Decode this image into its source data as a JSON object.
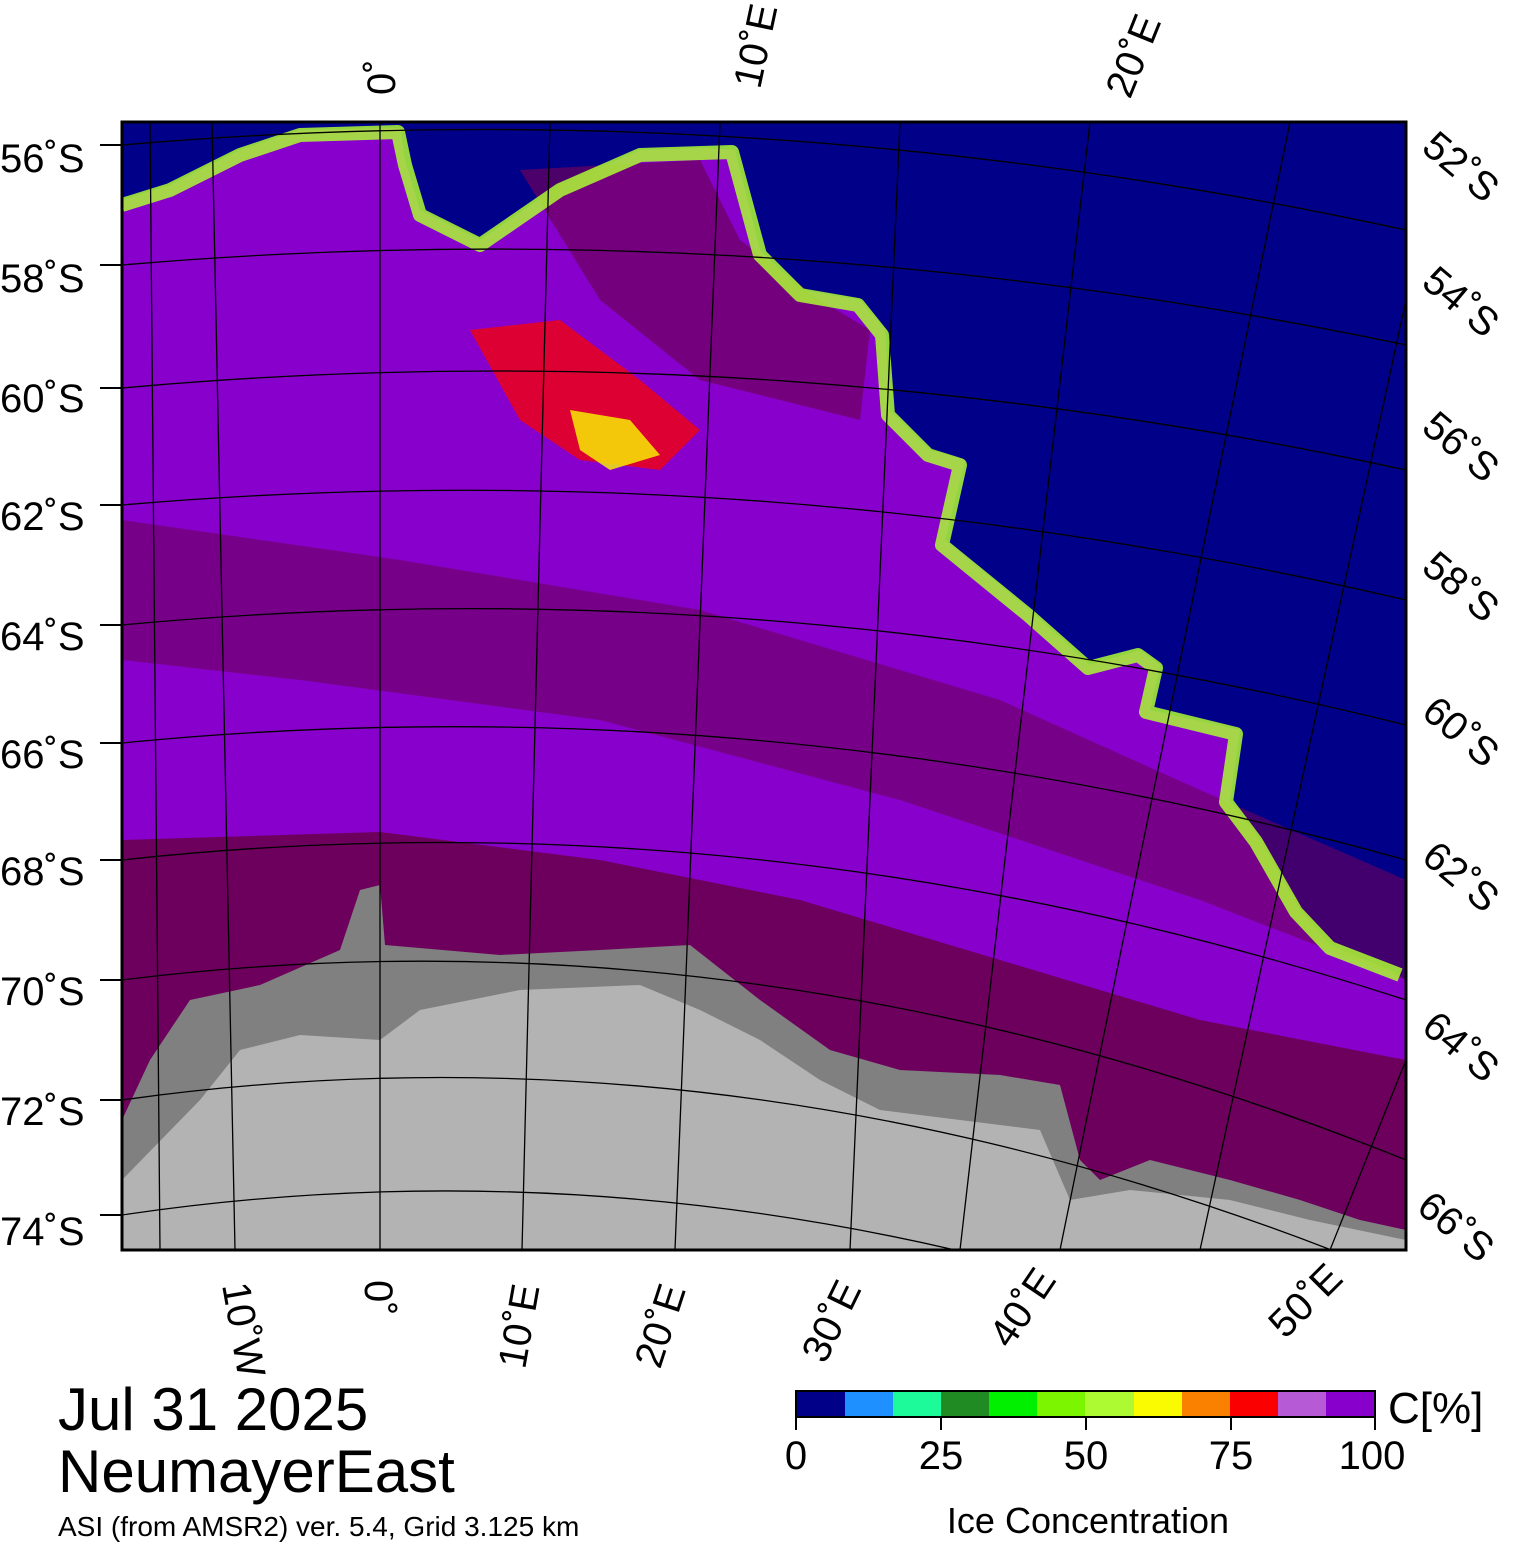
{
  "date": "Jul 31 2025",
  "region": "NeumayerEast",
  "product": "ASI (from AMSR2) ver. 5.4,  Grid 3.125 km",
  "map": {
    "colors": {
      "ocean": "#000088",
      "land": "#b3b3b3",
      "ice_shelf": "#808080",
      "ice_dense": "#6c005c",
      "ice_high": "#8800cc"
    },
    "lat_labels_left": [
      "56˚S",
      "58˚S",
      "60˚S",
      "62˚S",
      "64˚S",
      "66˚S",
      "68˚S",
      "70˚S",
      "72˚S",
      "74˚S"
    ],
    "lat_labels_right": [
      "52˚S",
      "54˚S",
      "56˚S",
      "58˚S",
      "60˚S",
      "62˚S",
      "64˚S",
      "66˚S"
    ],
    "lon_labels_top": [
      "0˚",
      "10˚E",
      "20˚E"
    ],
    "lon_labels_bottom": [
      "10˚W",
      "0˚",
      "10˚E",
      "20˚E",
      "30˚E",
      "40˚E",
      "50˚E"
    ]
  },
  "colorbar": {
    "label": "Ice Concentration",
    "unit": "C[%]",
    "ticks": [
      "0",
      "25",
      "50",
      "75",
      "100"
    ],
    "colors": [
      "#000088",
      "#1e90ff",
      "#1cfa9a",
      "#1f8b22",
      "#00f000",
      "#7cf500",
      "#adfa32",
      "#fafa00",
      "#fa8000",
      "#fa0000",
      "#b65ad6",
      "#8800cc"
    ]
  }
}
